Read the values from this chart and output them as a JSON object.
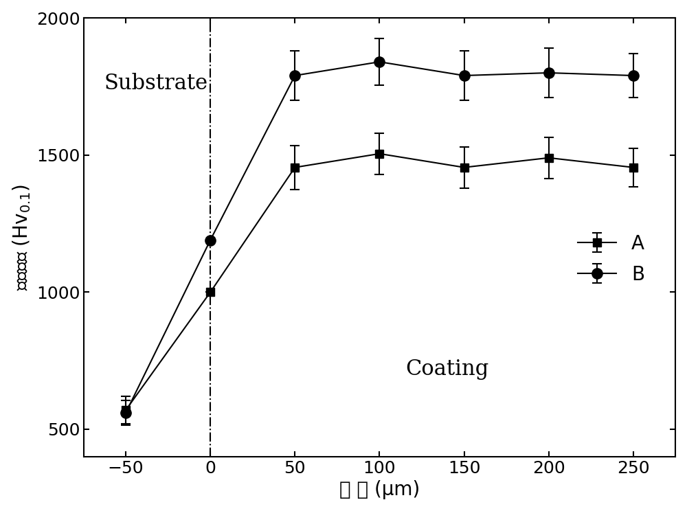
{
  "x": [
    -50,
    0,
    50,
    100,
    150,
    200,
    250
  ],
  "series_A": {
    "y": [
      570,
      1000,
      1455,
      1505,
      1455,
      1490,
      1455
    ],
    "yerr": [
      50,
      0,
      80,
      75,
      75,
      75,
      70
    ],
    "label": "A",
    "marker": "s",
    "color": "#000000"
  },
  "series_B": {
    "y": [
      560,
      1190,
      1790,
      1840,
      1790,
      1800,
      1790
    ],
    "yerr": [
      45,
      0,
      90,
      85,
      90,
      90,
      80
    ],
    "label": "B",
    "marker": "o",
    "color": "#000000"
  },
  "vline_x": 0,
  "xlabel": "距 离 (μm)",
  "ylabel": "显微硬度 (Hv$_{0.1}$)",
  "ylim": [
    400,
    2000
  ],
  "yticks": [
    500,
    1000,
    1500,
    2000
  ],
  "xlim": [
    -75,
    275
  ],
  "xticks": [
    -50,
    0,
    50,
    100,
    150,
    200,
    250
  ],
  "substrate_label": "Substrate",
  "coating_label": "Coating",
  "substrate_x": -63,
  "substrate_y": 1760,
  "coating_x": 140,
  "coating_y": 720,
  "background_color": "#ffffff",
  "font_size_labels": 20,
  "font_size_ticks": 18,
  "font_size_annotations": 22,
  "font_size_legend": 20
}
